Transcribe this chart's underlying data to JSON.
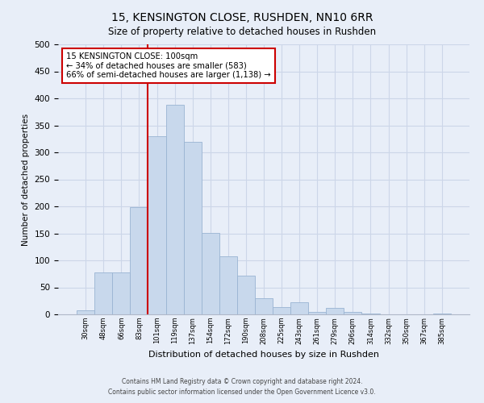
{
  "title": "15, KENSINGTON CLOSE, RUSHDEN, NN10 6RR",
  "subtitle": "Size of property relative to detached houses in Rushden",
  "xlabel": "Distribution of detached houses by size in Rushden",
  "ylabel": "Number of detached properties",
  "bar_labels": [
    "30sqm",
    "48sqm",
    "66sqm",
    "83sqm",
    "101sqm",
    "119sqm",
    "137sqm",
    "154sqm",
    "172sqm",
    "190sqm",
    "208sqm",
    "225sqm",
    "243sqm",
    "261sqm",
    "279sqm",
    "296sqm",
    "314sqm",
    "332sqm",
    "350sqm",
    "367sqm",
    "385sqm"
  ],
  "bar_values": [
    8,
    78,
    78,
    198,
    330,
    388,
    320,
    151,
    107,
    72,
    30,
    13,
    22,
    5,
    12,
    4,
    2,
    0,
    0,
    0,
    2
  ],
  "bar_color": "#c8d8ec",
  "bar_edge_color": "#9ab4d2",
  "vline_color": "#cc0000",
  "annotation_text": "15 KENSINGTON CLOSE: 100sqm\n← 34% of detached houses are smaller (583)\n66% of semi-detached houses are larger (1,138) →",
  "annotation_box_edgecolor": "#cc0000",
  "annotation_box_facecolor": "#ffffff",
  "ylim": [
    0,
    500
  ],
  "yticks": [
    0,
    50,
    100,
    150,
    200,
    250,
    300,
    350,
    400,
    450,
    500
  ],
  "grid_color": "#ccd6e8",
  "fig_background_color": "#e8eef8",
  "axes_background_color": "#e8eef8",
  "footer_line1": "Contains HM Land Registry data © Crown copyright and database right 2024.",
  "footer_line2": "Contains public sector information licensed under the Open Government Licence v3.0."
}
